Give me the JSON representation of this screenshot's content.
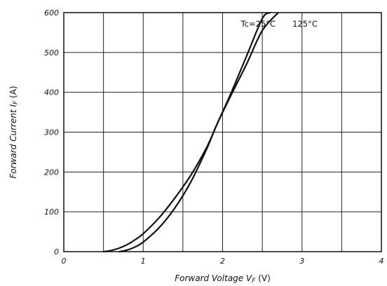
{
  "chart_data": {
    "type": "line",
    "xlabel": "Forward Voltage V",
    "xlabel_sub": "F",
    "xlabel_unit": " (V)",
    "ylabel": "Forward Current I",
    "ylabel_sub": "F",
    "ylabel_unit": " (A)",
    "xlim": [
      0,
      4
    ],
    "ylim": [
      0,
      600
    ],
    "x_ticks": [
      "0",
      "1",
      "2",
      "3",
      "4"
    ],
    "y_ticks": [
      "0",
      "100",
      "200",
      "300",
      "400",
      "500",
      "600"
    ],
    "grid": true,
    "series": [
      {
        "name": "Tc=25°C",
        "x": [
          0.5,
          0.6,
          0.7,
          0.8,
          0.9,
          1.0,
          1.2,
          1.4,
          1.6,
          1.8,
          1.93,
          2.1,
          2.3,
          2.5,
          2.6
        ],
        "y": [
          0,
          3,
          9,
          18,
          30,
          45,
          85,
          135,
          192,
          262,
          320,
          395,
          490,
          585,
          600
        ]
      },
      {
        "name": "125°C",
        "x": [
          0.7,
          0.8,
          0.9,
          1.0,
          1.2,
          1.4,
          1.6,
          1.8,
          1.93,
          2.1,
          2.3,
          2.5,
          2.7
        ],
        "y": [
          0,
          4,
          12,
          24,
          60,
          110,
          175,
          258,
          320,
          390,
          470,
          555,
          600
        ]
      }
    ],
    "annotations": [
      {
        "text": "Tc=25°C",
        "x": 2.23,
        "y": 565
      },
      {
        "text": "125°C",
        "x": 2.88,
        "y": 565
      }
    ]
  }
}
